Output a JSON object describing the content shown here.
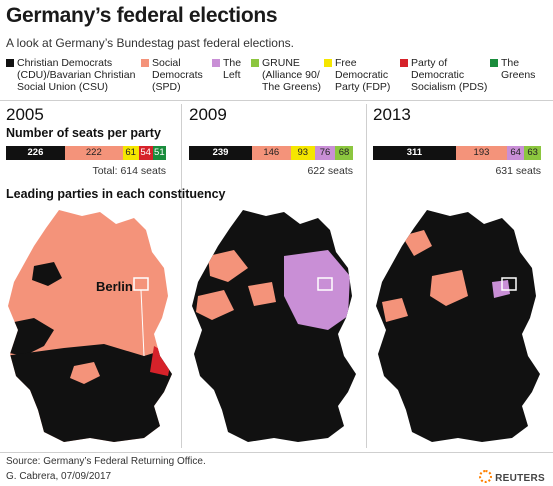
{
  "header": {
    "title": "Germany’s federal elections",
    "subtitle": "A look at Germany’s Bundestag past federal elections."
  },
  "legend": [
    {
      "label": "Christian Democrats\n(CDU)/Bavarian Christian\nSocial Union (CSU)",
      "color": "#111111"
    },
    {
      "label": "Social\nDemocrats\n(SPD)",
      "color": "#f4937a"
    },
    {
      "label": "The\nLeft",
      "color": "#c98fd6"
    },
    {
      "label": "GRUNE\n(Alliance 90/\nThe Greens)",
      "color": "#8cc63f"
    },
    {
      "label": "Free\nDemocratic\nParty (FDP)",
      "color": "#f5e600"
    },
    {
      "label": "Party of\nDemocratic\nSocialism (PDS)",
      "color": "#d6222a"
    },
    {
      "label": "The\nGreens",
      "color": "#1a8c3c"
    }
  ],
  "sections": {
    "seats": "Number of seats per party",
    "constituency": "Leading parties in each constituency"
  },
  "map_labels": {
    "berlin": "Berlin"
  },
  "chart_data": [
    {
      "type": "bar",
      "title": "2005",
      "categories": [
        "CDU/CSU",
        "SPD",
        "FDP",
        "PDS",
        "The Greens"
      ],
      "values": [
        226,
        222,
        61,
        54,
        51
      ],
      "colors": [
        "#111111",
        "#f4937a",
        "#f5e600",
        "#d6222a",
        "#1a8c3c"
      ],
      "total_label": "Total: 614 seats"
    },
    {
      "type": "bar",
      "title": "2009",
      "categories": [
        "CDU/CSU",
        "SPD",
        "FDP",
        "The Left",
        "GRUNE"
      ],
      "values": [
        239,
        146,
        93,
        76,
        68
      ],
      "colors": [
        "#111111",
        "#f4937a",
        "#f5e600",
        "#c98fd6",
        "#8cc63f"
      ],
      "total_label": "622 seats"
    },
    {
      "type": "bar",
      "title": "2013",
      "categories": [
        "CDU/CSU",
        "SPD",
        "The Left",
        "GRUNE"
      ],
      "values": [
        311,
        193,
        64,
        63
      ],
      "colors": [
        "#111111",
        "#f4937a",
        "#c98fd6",
        "#8cc63f"
      ],
      "total_label": "631 seats"
    }
  ],
  "footer": {
    "source": "Source: Germany’s Federal Returning Office.",
    "credit": "G. Cabrera, 07/09/2017",
    "logo": "REUTERS"
  },
  "colors": {
    "black": "#111111",
    "spd": "#f4937a",
    "left": "#c98fd6",
    "green_alliance": "#8cc63f",
    "fdp": "#f5e600",
    "pds": "#d6222a",
    "greens": "#1a8c3c"
  }
}
